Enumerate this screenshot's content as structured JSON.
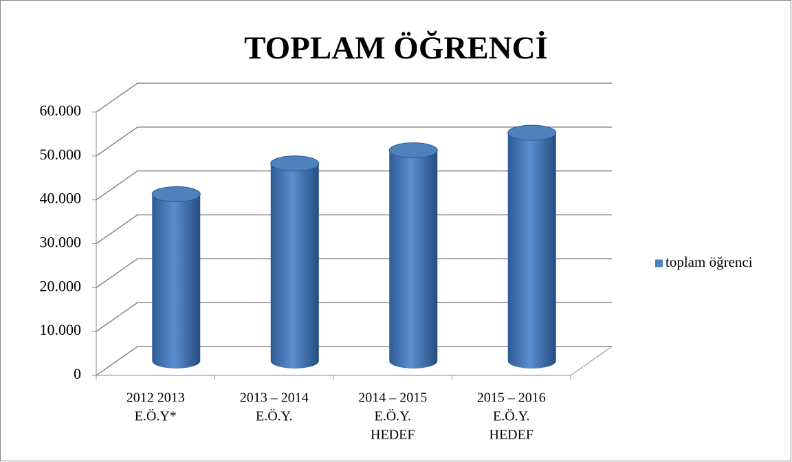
{
  "chart_data": {
    "type": "cylinder_bar",
    "title": "TOPLAM ÖĞRENCİ",
    "categories": [
      [
        "2012 2013",
        "E.Ö.Y*"
      ],
      [
        "2013 – 2014",
        "E.Ö.Y."
      ],
      [
        "2014 – 2015",
        "E.Ö.Y.",
        "HEDEF"
      ],
      [
        "2015 – 2016",
        "E.Ö.Y.",
        "HEDEF"
      ]
    ],
    "series": [
      {
        "name": "toplam öğrenci",
        "color": "#4f81bd",
        "values": [
          38000,
          45000,
          48000,
          52000
        ]
      }
    ],
    "ylim": [
      0,
      60000
    ],
    "yticks": [
      0,
      {
        "value": 10000,
        "label": "10.000"
      },
      {
        "value": 20000,
        "label": "20.000"
      },
      {
        "value": 30000,
        "label": "30.000"
      },
      {
        "value": 40000,
        "label": "40.000"
      },
      {
        "value": 50000,
        "label": "50.000"
      },
      {
        "value": 60000,
        "label": "60.000"
      }
    ],
    "grid": true,
    "legend": "right"
  }
}
